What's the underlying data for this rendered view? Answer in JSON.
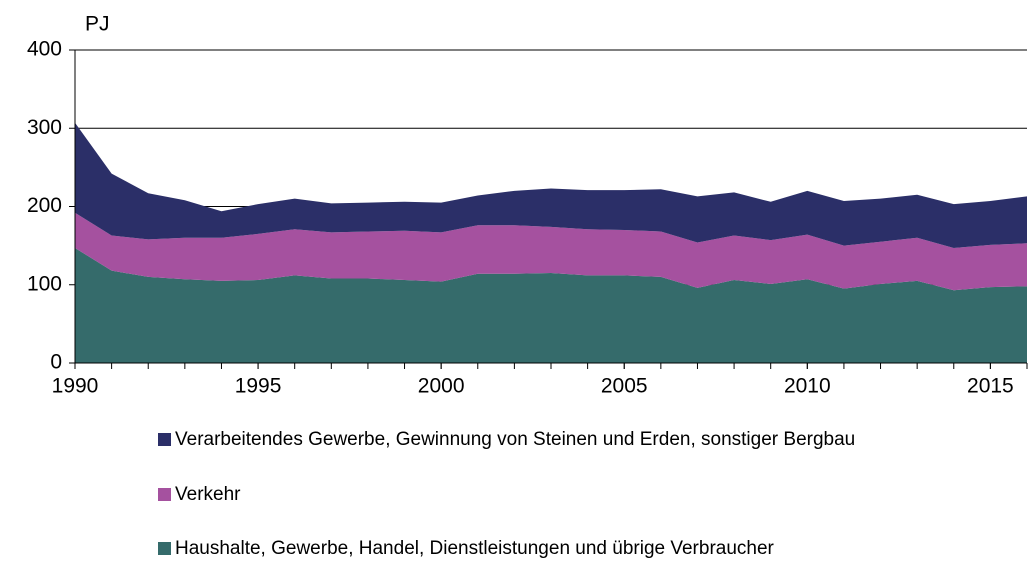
{
  "chart_data": {
    "type": "stacked_area",
    "y_label": "PJ",
    "x": [
      1990,
      1991,
      1992,
      1993,
      1994,
      1995,
      1996,
      1997,
      1998,
      1999,
      2000,
      2001,
      2002,
      2003,
      2004,
      2005,
      2006,
      2007,
      2008,
      2009,
      2010,
      2011,
      2012,
      2013,
      2014,
      2015,
      2016
    ],
    "series": [
      {
        "name": "Verarbeitendes Gewerbe, Gewinnung von Steinen und Erden, sonstiger Bergbau",
        "color": "#2b2f68",
        "values": [
          115,
          79,
          59,
          48,
          34,
          38,
          39,
          37,
          37,
          37,
          38,
          38,
          44,
          49,
          50,
          51,
          54,
          59,
          55,
          49,
          56,
          57,
          55,
          55,
          56,
          56,
          60
        ]
      },
      {
        "name": "Verkehr",
        "color": "#a5519f",
        "values": [
          45,
          45,
          48,
          53,
          55,
          59,
          59,
          59,
          60,
          63,
          63,
          62,
          62,
          59,
          59,
          58,
          58,
          58,
          57,
          56,
          57,
          55,
          54,
          55,
          54,
          54,
          55
        ]
      },
      {
        "name": "Haushalte, Gewerbe, Handel, Dienstleistungen und übrige Verbraucher",
        "color": "#356b6b",
        "values": [
          147,
          118,
          110,
          107,
          105,
          106,
          112,
          108,
          108,
          106,
          104,
          114,
          114,
          115,
          112,
          112,
          110,
          96,
          106,
          101,
          107,
          95,
          101,
          105,
          93,
          97,
          98
        ]
      }
    ],
    "xlim": [
      1990,
      2016
    ],
    "xticks": [
      1990,
      1995,
      2000,
      2005,
      2010,
      2015
    ],
    "ylim": [
      0,
      400
    ],
    "yticks": [
      0,
      100,
      200,
      300,
      400
    ],
    "grid": true
  }
}
